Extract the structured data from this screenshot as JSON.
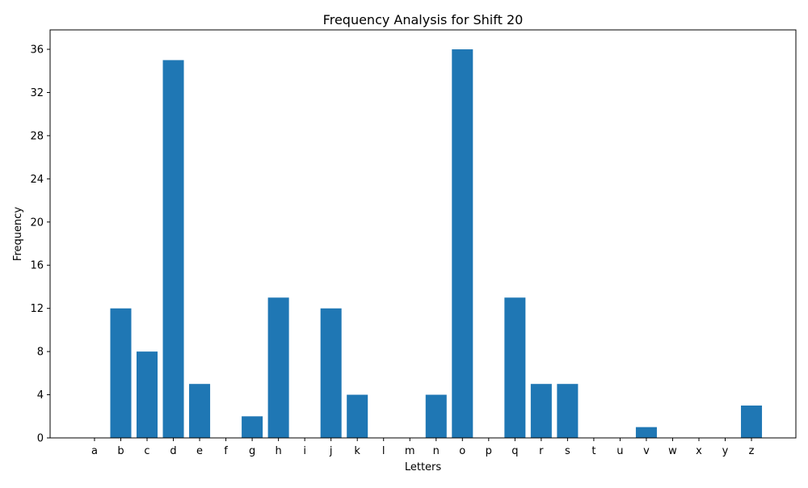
{
  "chart_data": {
    "type": "bar",
    "title": "Frequency Analysis for Shift 20",
    "xlabel": "Letters",
    "ylabel": "Frequency",
    "categories": [
      "a",
      "b",
      "c",
      "d",
      "e",
      "f",
      "g",
      "h",
      "i",
      "j",
      "k",
      "l",
      "m",
      "n",
      "o",
      "p",
      "q",
      "r",
      "s",
      "t",
      "u",
      "v",
      "w",
      "x",
      "y",
      "z"
    ],
    "values": [
      0,
      12,
      8,
      35,
      5,
      0,
      2,
      13,
      0,
      12,
      4,
      0,
      0,
      4,
      36,
      0,
      13,
      5,
      5,
      0,
      0,
      1,
      0,
      0,
      0,
      3
    ],
    "ylim": [
      0,
      37.8
    ],
    "yticks": [
      0,
      4,
      8,
      12,
      16,
      20,
      24,
      28,
      32,
      36
    ],
    "grid": false,
    "colors": {
      "bar": "#1f77b4",
      "axis": "#000000",
      "background": "#ffffff"
    }
  }
}
